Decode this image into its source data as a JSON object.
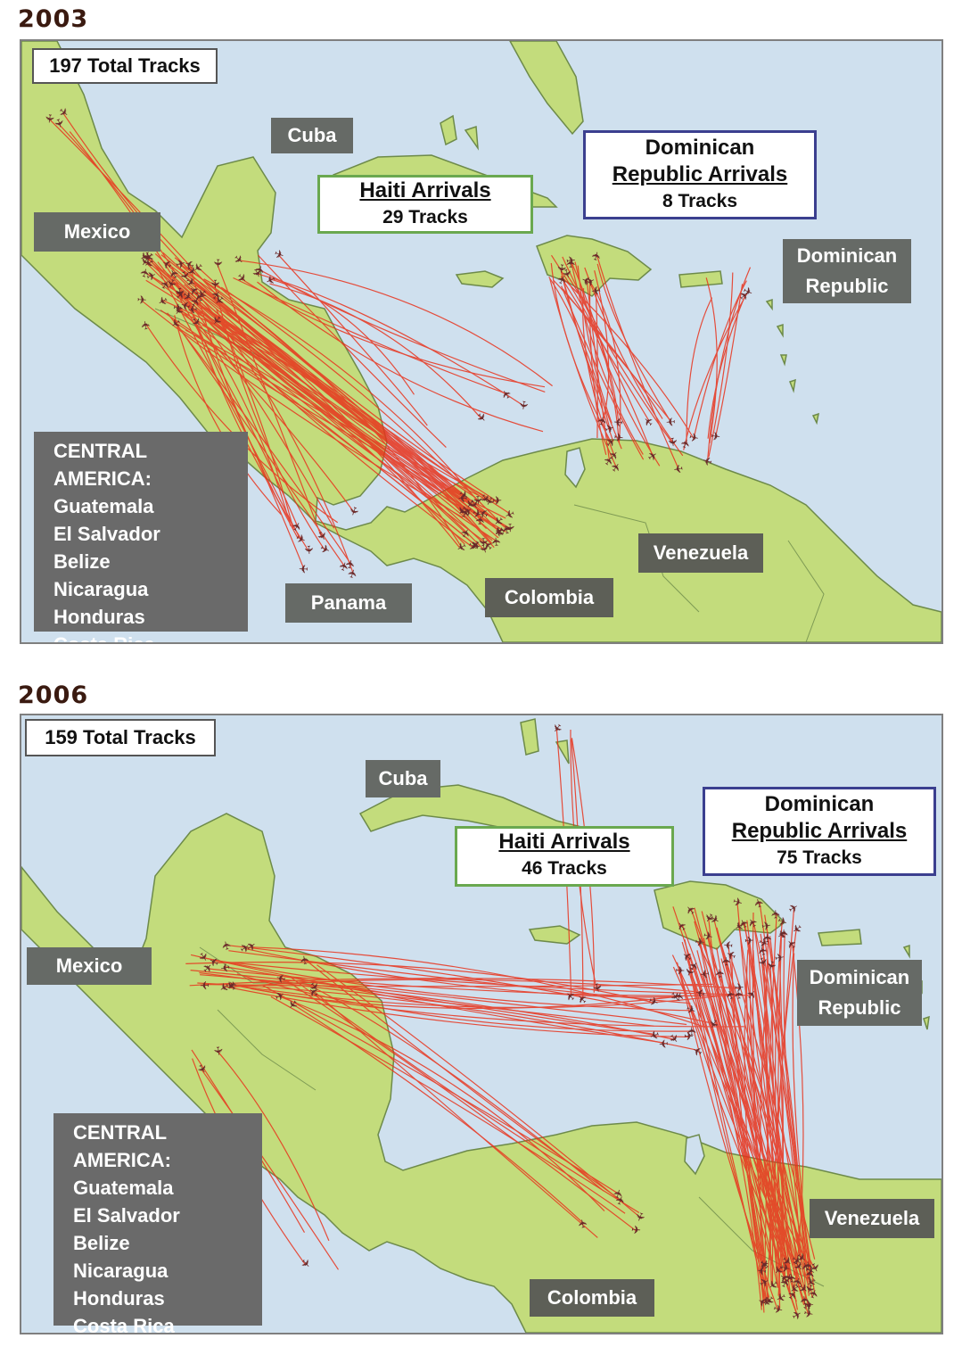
{
  "maps": [
    {
      "year": "2003",
      "total_tracks": "197 Total Tracks",
      "haiti": {
        "title": "Haiti Arrivals",
        "tracks": "29 Tracks"
      },
      "dr_arrivals": {
        "title_line1": "Dominican",
        "title_line2": "Republic Arrivals",
        "tracks": "8 Tracks"
      },
      "labels": {
        "cuba": "Cuba",
        "mexico": "Mexico",
        "dominican_republic_line1": "Dominican",
        "dominican_republic_line2": "Republic",
        "venezuela": "Venezuela",
        "colombia": "Colombia",
        "panama": "Panama"
      },
      "central_america": {
        "heading": "CENTRAL AMERICA:",
        "countries": [
          "Guatemala",
          "El Salvador",
          "Belize",
          "Nicaragua",
          "Honduras",
          "Costa Rica"
        ]
      }
    },
    {
      "year": "2006",
      "total_tracks": "159 Total Tracks",
      "haiti": {
        "title": "Haiti Arrivals",
        "tracks": "46 Tracks"
      },
      "dr_arrivals": {
        "title_line1": "Dominican",
        "title_line2": "Republic Arrivals",
        "tracks": "75 Tracks"
      },
      "labels": {
        "cuba": "Cuba",
        "mexico": "Mexico",
        "dominican_republic_line1": "Dominican",
        "dominican_republic_line2": "Republic",
        "venezuela": "Venezuela",
        "colombia": "Colombia"
      },
      "central_america": {
        "heading": "CENTRAL AMERICA:",
        "countries": [
          "Guatemala",
          "El Salvador",
          "Belize",
          "Nicaragua",
          "Honduras",
          "Costa Rica"
        ]
      }
    }
  ],
  "colors": {
    "ocean": "#cfe0ee",
    "land": "#c3dc7c",
    "track": "#e8331c",
    "aircraft": "#6b2a2a",
    "label_bg": "#666a66"
  }
}
